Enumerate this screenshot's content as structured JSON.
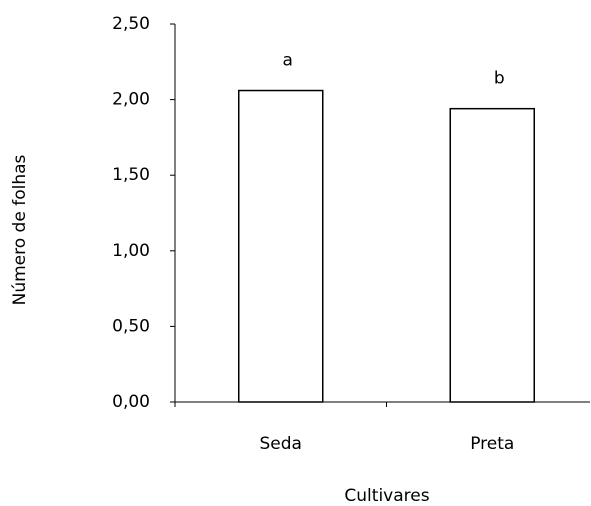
{
  "chart_data": {
    "type": "bar",
    "x_label": "Cultivares",
    "y_label": "Número de folhas",
    "categories": [
      "Seda",
      "Preta"
    ],
    "values": [
      2.06,
      1.94
    ],
    "annotations": [
      "a",
      "b"
    ],
    "color": "#ffffff",
    "edge_color": "#000000",
    "ylim": [
      0,
      2.5
    ],
    "yticks": [
      {
        "value": 0,
        "label": "0,00"
      },
      {
        "value": 0.5,
        "label": "0,50"
      },
      {
        "value": 1,
        "label": "1,00"
      },
      {
        "value": 1.5,
        "label": "1,50"
      },
      {
        "value": 2,
        "label": "2,00"
      },
      {
        "value": 2.5,
        "label": "2,50"
      }
    ],
    "grid": false
  }
}
